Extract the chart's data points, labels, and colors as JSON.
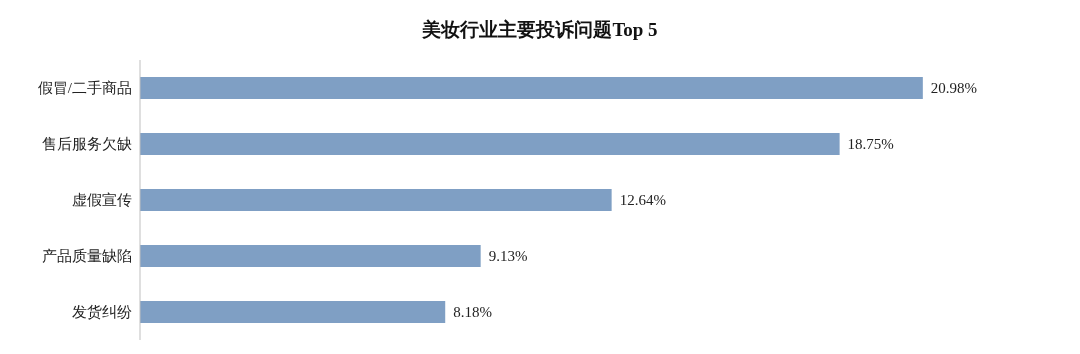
{
  "chart_data": {
    "type": "bar",
    "orientation": "horizontal",
    "title": "美妆行业主要投诉问题Top 5",
    "categories": [
      "假冒/二手商品",
      "售后服务欠缺",
      "虚假宣传",
      "产品质量缺陷",
      "发货纠纷"
    ],
    "values": [
      20.98,
      18.75,
      12.64,
      9.13,
      8.18
    ],
    "value_labels": [
      "20.98%",
      "18.75%",
      "12.64%",
      "9.13%",
      "8.18%"
    ],
    "color": "#7f9fc4",
    "grid": false,
    "legend": false
  }
}
